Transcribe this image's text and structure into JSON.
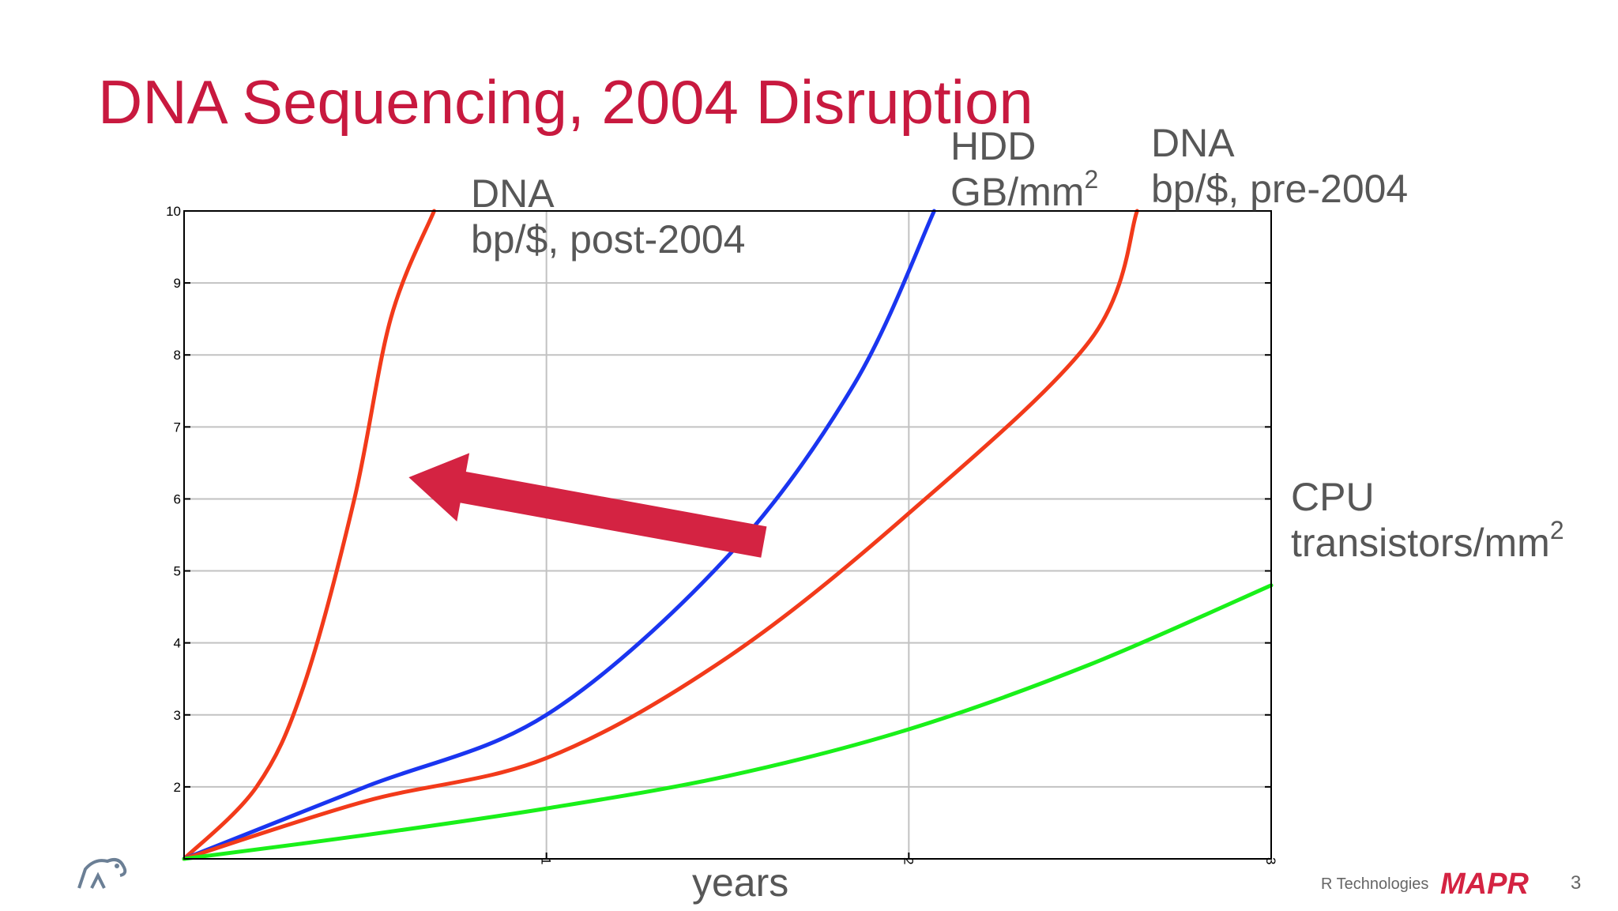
{
  "slide": {
    "title": "DNA Sequencing, 2004 Disruption",
    "company": "R Technologies",
    "page_number": "3",
    "logo_text": "MAPR",
    "title_color": "#c8193f"
  },
  "labels": {
    "dna_post": {
      "line1": "DNA",
      "line2": "bp/$, post-2004"
    },
    "hdd": {
      "line1": "HDD",
      "line2": "GB/mm",
      "sup": "2"
    },
    "dna_pre": {
      "line1": "DNA",
      "line2": "bp/$, pre-2004"
    },
    "cpu": {
      "line1": "CPU",
      "line2": "transistors/mm",
      "sup": "2"
    }
  },
  "chart_data": {
    "type": "line",
    "xlabel": "years",
    "ylabel": "",
    "xlim": [
      0,
      3
    ],
    "ylim": [
      1,
      10
    ],
    "xticks": [
      1,
      2,
      3
    ],
    "yticks": [
      2,
      3,
      4,
      5,
      6,
      7,
      8,
      9,
      10
    ],
    "grid": true,
    "series": [
      {
        "key": "dna_post",
        "color": "#f23a1a",
        "values": [
          [
            0,
            1
          ],
          [
            0.2,
            2
          ],
          [
            0.33,
            3.4
          ],
          [
            0.47,
            6
          ],
          [
            0.57,
            8.5
          ],
          [
            0.69,
            10
          ]
        ]
      },
      {
        "key": "hdd",
        "color": "#1a35f0",
        "values": [
          [
            0,
            1
          ],
          [
            0.5,
            2
          ],
          [
            1.0,
            3
          ],
          [
            1.5,
            5.2
          ],
          [
            1.85,
            7.6
          ],
          [
            2.07,
            10
          ]
        ]
      },
      {
        "key": "dna_pre",
        "color": "#f23a1a",
        "values": [
          [
            0,
            1
          ],
          [
            0.5,
            1.8
          ],
          [
            1.0,
            2.4
          ],
          [
            1.5,
            3.8
          ],
          [
            2.0,
            5.8
          ],
          [
            2.5,
            8.2
          ],
          [
            2.63,
            10
          ]
        ]
      },
      {
        "key": "cpu",
        "color": "#19f019",
        "values": [
          [
            0,
            1
          ],
          [
            0.5,
            1.33
          ],
          [
            1.0,
            1.7
          ],
          [
            1.5,
            2.15
          ],
          [
            2.0,
            2.8
          ],
          [
            2.5,
            3.7
          ],
          [
            3.0,
            4.8
          ]
        ]
      }
    ],
    "annotations": [
      {
        "type": "arrow",
        "color": "#d42342",
        "from": [
          1.6,
          5.4
        ],
        "to": [
          0.62,
          6.3
        ]
      }
    ]
  }
}
